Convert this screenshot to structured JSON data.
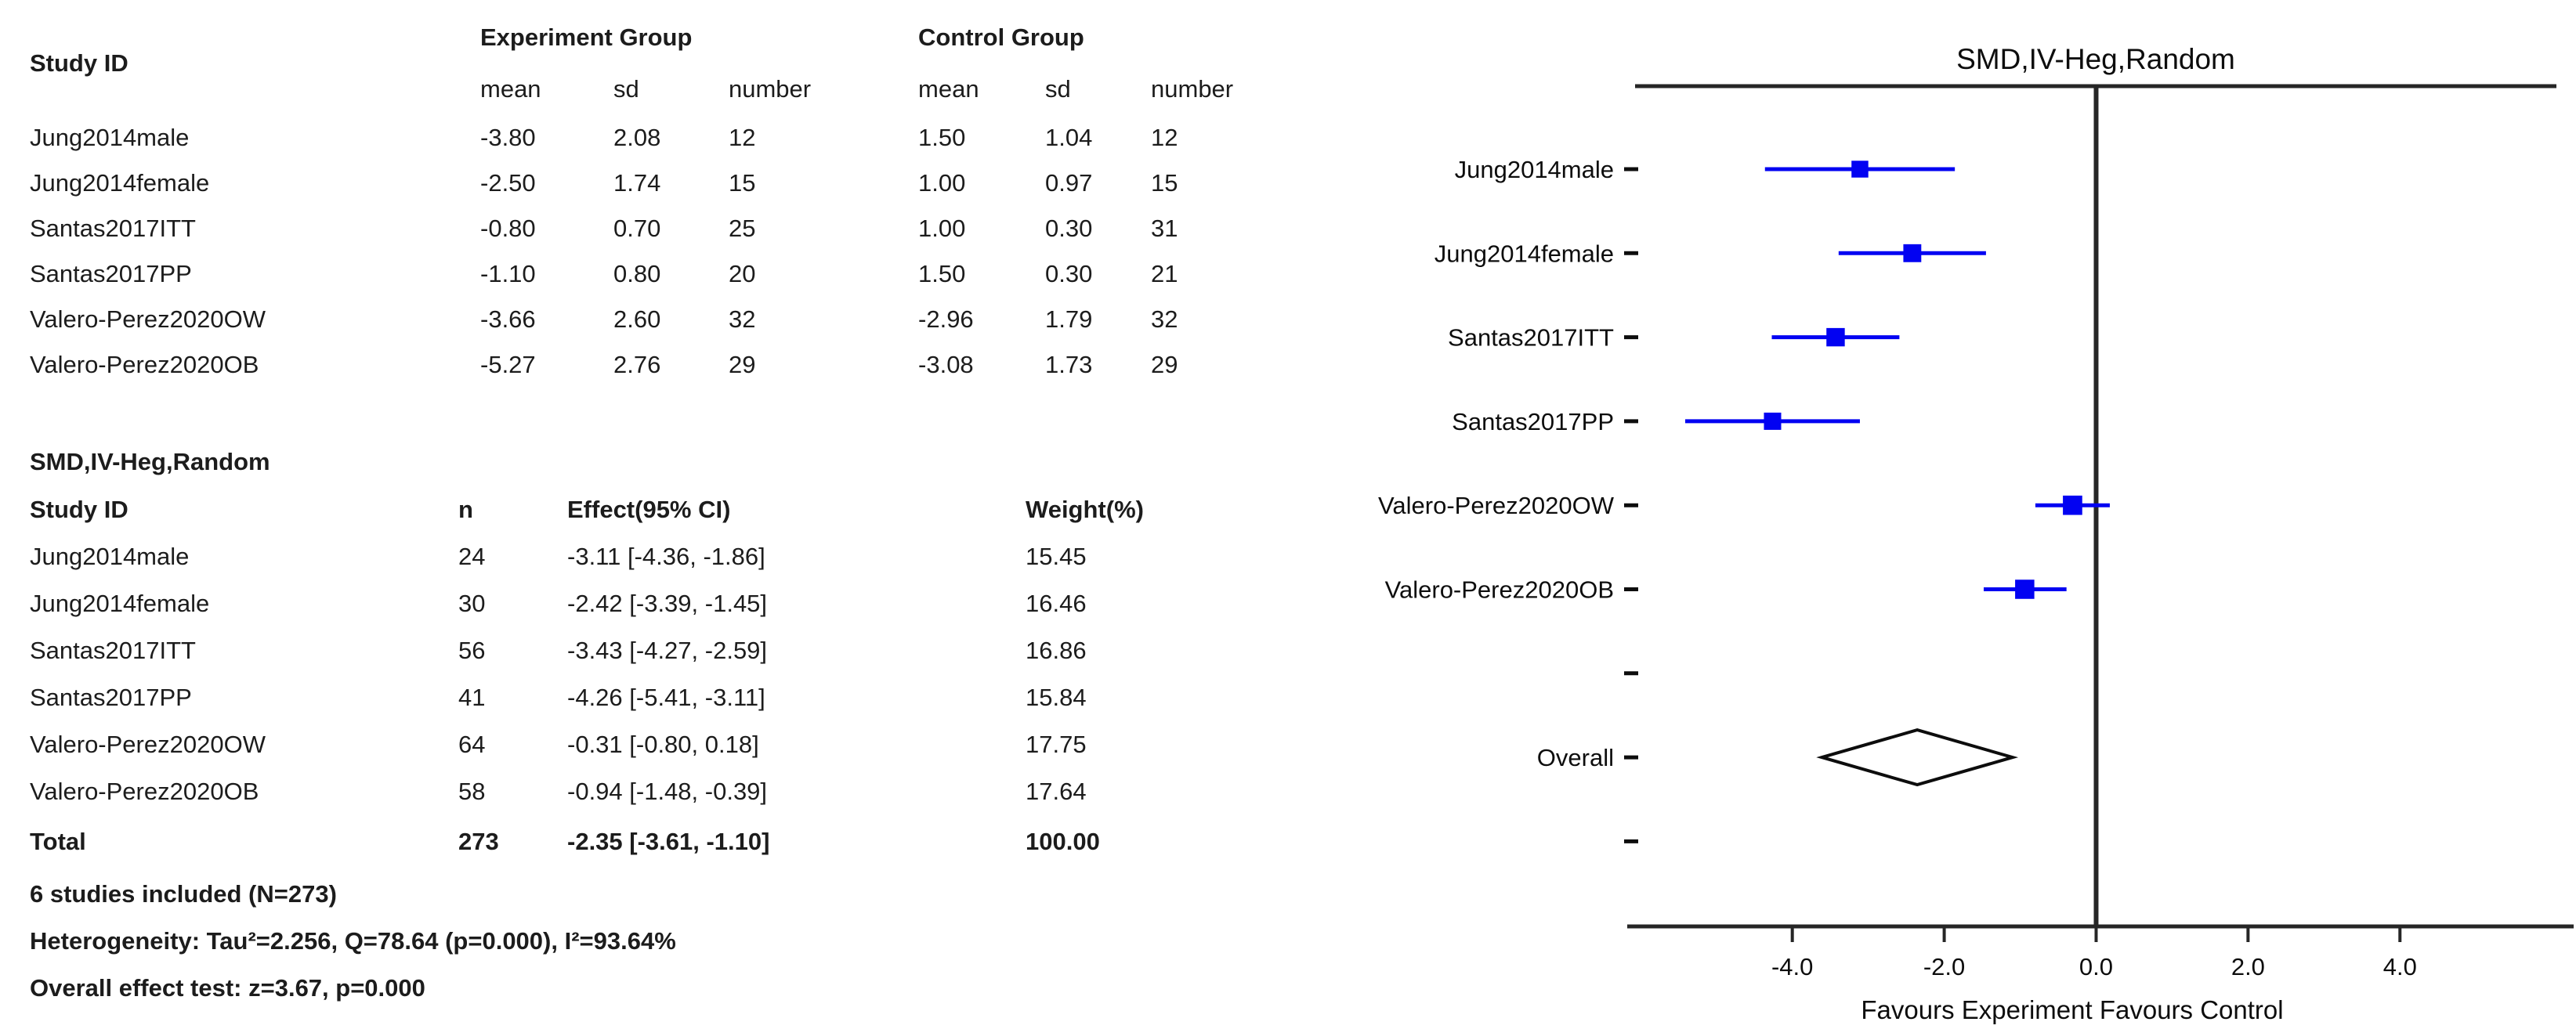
{
  "group_table": {
    "study_id_label": "Study ID",
    "experiment_group_label": "Experiment Group",
    "control_group_label": "Control Group",
    "subheaders": [
      "mean",
      "sd",
      "number",
      "mean",
      "sd",
      "number"
    ],
    "rows": [
      {
        "study": "Jung2014male",
        "exp_mean": "-3.80",
        "exp_sd": "2.08",
        "exp_n": "12",
        "ctrl_mean": "1.50",
        "ctrl_sd": "1.04",
        "ctrl_n": "12"
      },
      {
        "study": "Jung2014female",
        "exp_mean": "-2.50",
        "exp_sd": "1.74",
        "exp_n": "15",
        "ctrl_mean": "1.00",
        "ctrl_sd": "0.97",
        "ctrl_n": "15"
      },
      {
        "study": "Santas2017ITT",
        "exp_mean": "-0.80",
        "exp_sd": "0.70",
        "exp_n": "25",
        "ctrl_mean": "1.00",
        "ctrl_sd": "0.30",
        "ctrl_n": "31"
      },
      {
        "study": "Santas2017PP",
        "exp_mean": "-1.10",
        "exp_sd": "0.80",
        "exp_n": "20",
        "ctrl_mean": "1.50",
        "ctrl_sd": "0.30",
        "ctrl_n": "21"
      },
      {
        "study": "Valero-Perez2020OW",
        "exp_mean": "-3.66",
        "exp_sd": "2.60",
        "exp_n": "32",
        "ctrl_mean": "-2.96",
        "ctrl_sd": "1.79",
        "ctrl_n": "32"
      },
      {
        "study": "Valero-Perez2020OB",
        "exp_mean": "-5.27",
        "exp_sd": "2.76",
        "exp_n": "29",
        "ctrl_mean": "-3.08",
        "ctrl_sd": "1.73",
        "ctrl_n": "29"
      }
    ]
  },
  "effect_table": {
    "section_title": "SMD,IV-Heg,Random",
    "headers": {
      "study": "Study ID",
      "n": "n",
      "effect": "Effect(95% CI)",
      "weight": "Weight(%)"
    },
    "rows": [
      {
        "study": "Jung2014male",
        "n": "24",
        "effect": "-3.11 [-4.36, -1.86]",
        "weight": "15.45"
      },
      {
        "study": "Jung2014female",
        "n": "30",
        "effect": "-2.42 [-3.39, -1.45]",
        "weight": "16.46"
      },
      {
        "study": "Santas2017ITT",
        "n": "56",
        "effect": "-3.43 [-4.27, -2.59]",
        "weight": "16.86"
      },
      {
        "study": "Santas2017PP",
        "n": "41",
        "effect": "-4.26 [-5.41, -3.11]",
        "weight": "15.84"
      },
      {
        "study": "Valero-Perez2020OW",
        "n": "64",
        "effect": "-0.31 [-0.80, 0.18]",
        "weight": "17.75"
      },
      {
        "study": "Valero-Perez2020OB",
        "n": "58",
        "effect": "-0.94 [-1.48, -0.39]",
        "weight": "17.64"
      }
    ],
    "total": {
      "study": "Total",
      "n": "273",
      "effect": "-2.35 [-3.61, -1.10]",
      "weight": "100.00"
    }
  },
  "summary": {
    "line1": "6 studies included (N=273)",
    "line2": "Heterogeneity: Tau²=2.256, Q=78.64 (p=0.000), I²=93.64%",
    "line3": "Overall effect test: z=3.67, p=0.000"
  },
  "chart_data": {
    "type": "forest",
    "title": "SMD,IV-Heg,Random",
    "xlabel": "Favours Experiment  Favours Control",
    "xlim": [
      -6.07,
      6.06
    ],
    "x_ticks": [
      -4.0,
      -2.0,
      0.0,
      2.0,
      4.0
    ],
    "x_tick_labels": [
      "-4.0",
      "-2.0",
      "0.0",
      "2.0",
      "4.0"
    ],
    "zero_line_x": 0.0,
    "grid": "off",
    "legend": "none",
    "studies": [
      {
        "label": "Jung2014male",
        "effect": -3.11,
        "ci_low": -4.36,
        "ci_high": -1.86,
        "weight": 15.45
      },
      {
        "label": "Jung2014female",
        "effect": -2.42,
        "ci_low": -3.39,
        "ci_high": -1.45,
        "weight": 16.46
      },
      {
        "label": "Santas2017ITT",
        "effect": -3.43,
        "ci_low": -4.27,
        "ci_high": -2.59,
        "weight": 16.86
      },
      {
        "label": "Santas2017PP",
        "effect": -4.26,
        "ci_low": -5.41,
        "ci_high": -3.11,
        "weight": 15.84
      },
      {
        "label": "Valero-Perez2020OW",
        "effect": -0.31,
        "ci_low": -0.8,
        "ci_high": 0.18,
        "weight": 17.75
      },
      {
        "label": "Valero-Perez2020OB",
        "effect": -0.94,
        "ci_low": -1.48,
        "ci_high": -0.39,
        "weight": 17.64
      }
    ],
    "overall": {
      "label": "Overall",
      "effect": -2.35,
      "ci_low": -3.61,
      "ci_high": -1.1
    },
    "marker_color": "#0202f2",
    "axis_color": "#262626",
    "diamond_color": "#0d0d0d"
  }
}
